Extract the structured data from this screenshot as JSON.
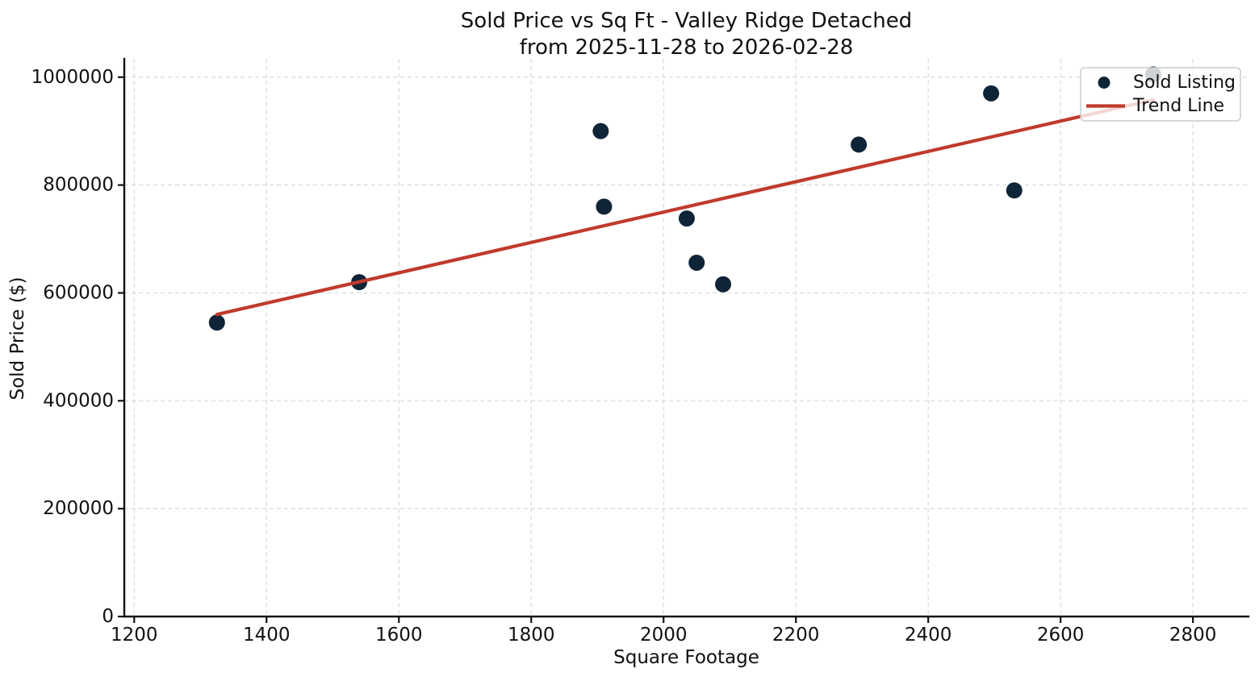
{
  "chart_data": {
    "type": "scatter",
    "title": "Sold Price vs Sq Ft - Valley Ridge Detached",
    "subtitle": "from 2025-11-28 to 2026-02-28",
    "xlabel": "Square Footage",
    "ylabel": "Sold Price ($)",
    "xlim": [
      1185,
      2884
    ],
    "ylim": [
      0,
      1034000
    ],
    "x_ticks": [
      1200,
      1400,
      1600,
      1800,
      2000,
      2200,
      2400,
      2600,
      2800
    ],
    "y_ticks": [
      0,
      200000,
      400000,
      600000,
      800000,
      1000000
    ],
    "grid": true,
    "legend_position": "upper-right",
    "colors": {
      "point": "#102438",
      "trend": "#c03a2b",
      "grid": "#d9d9d9",
      "axis": "#111111"
    },
    "legend": {
      "items": [
        {
          "label": "Sold Listing",
          "marker": "point"
        },
        {
          "label": "Trend Line",
          "marker": "line"
        }
      ]
    },
    "series": [
      {
        "name": "Sold Listing",
        "type": "scatter",
        "points": [
          [
            1325,
            545000
          ],
          [
            1540,
            620000
          ],
          [
            1905,
            900000
          ],
          [
            1910,
            760000
          ],
          [
            2035,
            738000
          ],
          [
            2050,
            656000
          ],
          [
            2090,
            616000
          ],
          [
            2295,
            875000
          ],
          [
            2495,
            970000
          ],
          [
            2530,
            790000
          ],
          [
            2740,
            1005000
          ]
        ]
      },
      {
        "name": "Trend Line",
        "type": "line",
        "points": [
          [
            1325,
            560000
          ],
          [
            2740,
            958000
          ]
        ]
      }
    ]
  }
}
